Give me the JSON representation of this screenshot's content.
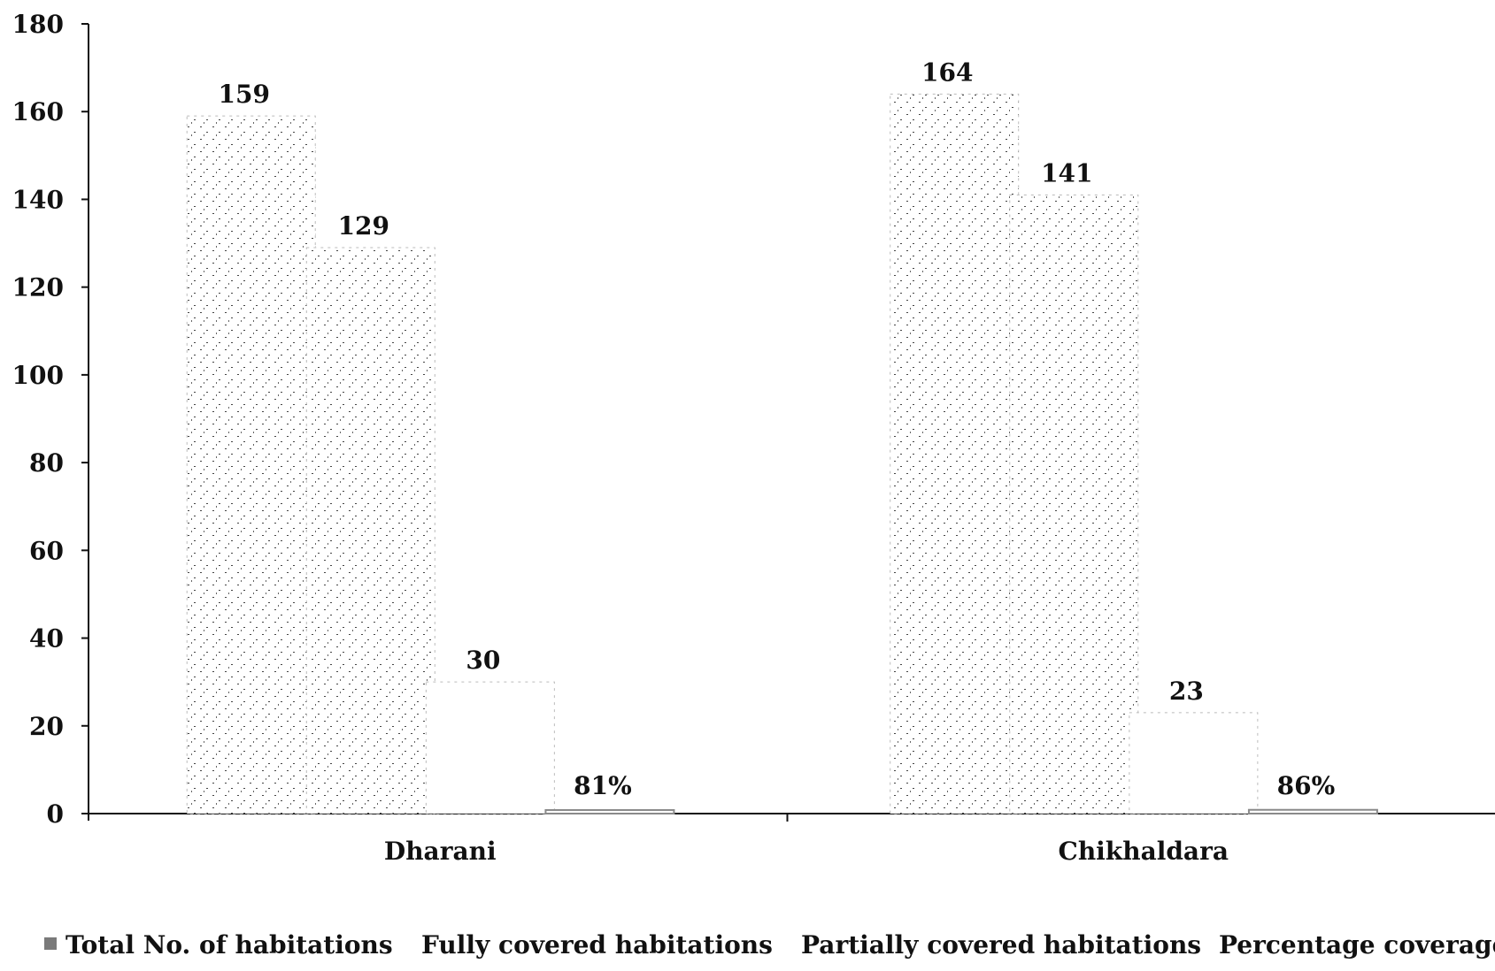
{
  "chart_data": {
    "type": "bar",
    "title": "",
    "xlabel": "",
    "ylabel": "",
    "ylim": [
      0,
      180
    ],
    "yticks": [
      0,
      20,
      40,
      60,
      80,
      100,
      120,
      140,
      160,
      180
    ],
    "grid": false,
    "legend_position": "bottom",
    "categories": [
      "Dharani",
      "Chikhaldara"
    ],
    "series": [
      {
        "name": "Total No. of habitations",
        "values": [
          159,
          164
        ],
        "labels": [
          "159",
          "164"
        ],
        "color": "#7a7a7a"
      },
      {
        "name": "Fully covered habitations",
        "values": [
          129,
          141
        ],
        "labels": [
          "129",
          "141"
        ],
        "color": "#9a9a9a"
      },
      {
        "name": "Partially covered habitations",
        "values": [
          30,
          23
        ],
        "labels": [
          "30",
          "23"
        ],
        "color": "#bdbdbd"
      },
      {
        "name": "Percentage coverage",
        "values": [
          0.81,
          0.86
        ],
        "labels": [
          "81%",
          "86%"
        ],
        "color": "#8a8a8a"
      }
    ]
  }
}
